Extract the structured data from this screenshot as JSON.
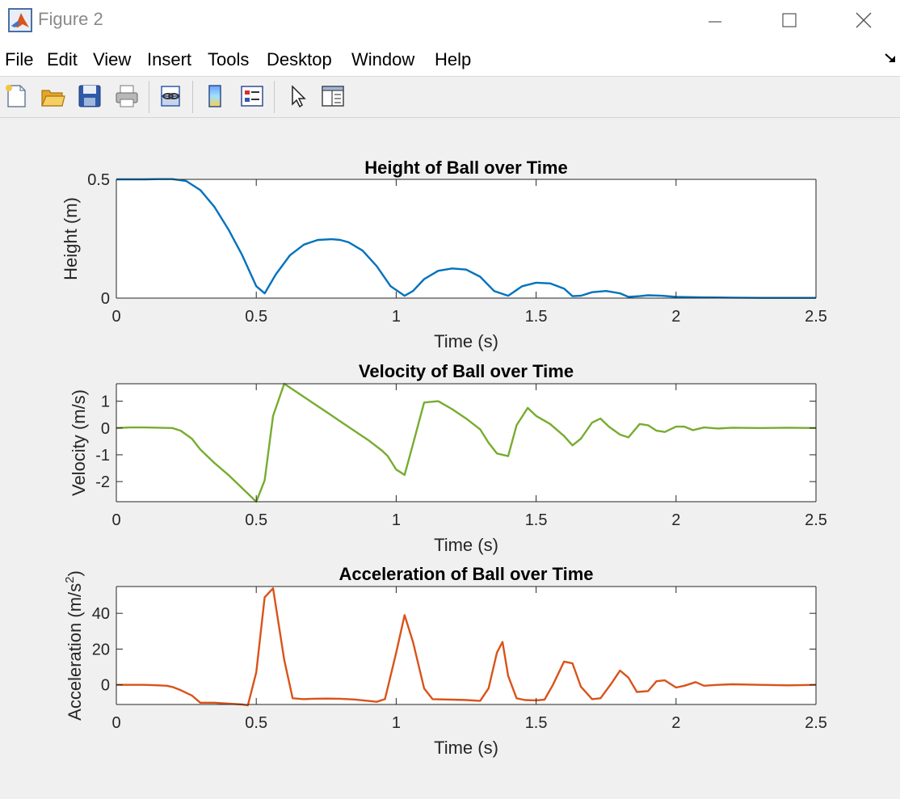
{
  "window": {
    "title": "Figure 2",
    "icon": "matlab-logo-icon"
  },
  "menu": [
    "File",
    "Edit",
    "View",
    "Insert",
    "Tools",
    "Desktop",
    "Window",
    "Help"
  ],
  "toolbar": [
    "new-figure-icon",
    "open-file-icon",
    "save-icon",
    "print-icon",
    "link-icon",
    "colorbar-icon",
    "legend-icon",
    "pointer-icon",
    "property-editor-icon"
  ],
  "chart_data": [
    {
      "type": "line",
      "title": "Height of Ball over Time",
      "xlabel": "Time (s)",
      "ylabel": "Height (m)",
      "xlim": [
        0,
        2.5
      ],
      "ylim": [
        0,
        0.5
      ],
      "xticks": [
        "0",
        "0.5",
        "1",
        "1.5",
        "2",
        "2.5"
      ],
      "yticks": [
        "0",
        "0.5"
      ],
      "ytick_values": [
        0,
        0.5
      ],
      "color": "#0072bd",
      "x": [
        0,
        0.05,
        0.1,
        0.15,
        0.2,
        0.25,
        0.3,
        0.35,
        0.4,
        0.45,
        0.5,
        0.53,
        0.57,
        0.62,
        0.67,
        0.72,
        0.77,
        0.8,
        0.83,
        0.88,
        0.93,
        0.98,
        1.03,
        1.06,
        1.1,
        1.15,
        1.2,
        1.25,
        1.3,
        1.35,
        1.4,
        1.45,
        1.5,
        1.55,
        1.6,
        1.63,
        1.66,
        1.7,
        1.75,
        1.8,
        1.83,
        1.87,
        1.9,
        1.95,
        2.0,
        2.05,
        2.1,
        2.2,
        2.3,
        2.4,
        2.5
      ],
      "y": [
        0.5,
        0.5,
        0.5,
        0.501,
        0.501,
        0.493,
        0.455,
        0.385,
        0.29,
        0.18,
        0.05,
        0.02,
        0.1,
        0.18,
        0.225,
        0.245,
        0.248,
        0.245,
        0.235,
        0.2,
        0.135,
        0.05,
        0.01,
        0.03,
        0.08,
        0.115,
        0.125,
        0.12,
        0.09,
        0.03,
        0.01,
        0.05,
        0.065,
        0.062,
        0.04,
        0.008,
        0.01,
        0.025,
        0.03,
        0.02,
        0.005,
        0.008,
        0.012,
        0.01,
        0.005,
        0.004,
        0.003,
        0.002,
        0.001,
        0.001,
        0.001
      ]
    },
    {
      "type": "line",
      "title": "Velocity of Ball over Time",
      "xlabel": "Time (s)",
      "ylabel": "Velocity (m/s)",
      "xlim": [
        0,
        2.5
      ],
      "ylim": [
        -2.75,
        1.65
      ],
      "xticks": [
        "0",
        "0.5",
        "1",
        "1.5",
        "2",
        "2.5"
      ],
      "yticks": [
        "-2",
        "-1",
        "0",
        "1"
      ],
      "ytick_values": [
        -2,
        -1,
        0,
        1
      ],
      "color": "#77ac30",
      "x": [
        0,
        0.05,
        0.1,
        0.15,
        0.2,
        0.23,
        0.27,
        0.3,
        0.35,
        0.4,
        0.45,
        0.5,
        0.53,
        0.56,
        0.6,
        0.65,
        0.7,
        0.75,
        0.8,
        0.85,
        0.9,
        0.95,
        0.97,
        1.0,
        1.03,
        1.06,
        1.1,
        1.15,
        1.2,
        1.25,
        1.3,
        1.33,
        1.36,
        1.4,
        1.43,
        1.47,
        1.5,
        1.55,
        1.6,
        1.63,
        1.66,
        1.7,
        1.73,
        1.76,
        1.8,
        1.83,
        1.87,
        1.9,
        1.93,
        1.96,
        2.0,
        2.03,
        2.06,
        2.1,
        2.15,
        2.2,
        2.3,
        2.4,
        2.5
      ],
      "y": [
        0,
        0.02,
        0.02,
        0.01,
        0,
        -0.1,
        -0.4,
        -0.8,
        -1.3,
        -1.75,
        -2.25,
        -2.75,
        -1.95,
        0.45,
        1.65,
        1.3,
        0.95,
        0.6,
        0.25,
        -0.1,
        -0.45,
        -0.85,
        -1.05,
        -1.55,
        -1.75,
        -0.6,
        0.95,
        1.0,
        0.7,
        0.35,
        -0.05,
        -0.55,
        -0.95,
        -1.05,
        0.1,
        0.75,
        0.45,
        0.15,
        -0.3,
        -0.65,
        -0.4,
        0.2,
        0.35,
        0.05,
        -0.25,
        -0.35,
        0.15,
        0.1,
        -0.1,
        -0.15,
        0.05,
        0.05,
        -0.08,
        0.02,
        -0.02,
        0.01,
        0,
        0.01,
        0
      ]
    },
    {
      "type": "line",
      "title": "Acceleration of Ball over Time",
      "xlabel": "Time (s)",
      "ylabel": "Acceleration (m/s",
      "ylabel_sup": "2",
      "ylabel_end": ")",
      "xlim": [
        0,
        2.5
      ],
      "ylim": [
        -11,
        55
      ],
      "xticks": [
        "0",
        "0.5",
        "1",
        "1.5",
        "2",
        "2.5"
      ],
      "yticks": [
        "0",
        "20",
        "40"
      ],
      "ytick_values": [
        0,
        20,
        40
      ],
      "color": "#d95319",
      "x": [
        0,
        0.05,
        0.1,
        0.15,
        0.18,
        0.2,
        0.23,
        0.27,
        0.3,
        0.35,
        0.4,
        0.45,
        0.47,
        0.5,
        0.53,
        0.56,
        0.6,
        0.63,
        0.67,
        0.7,
        0.75,
        0.8,
        0.85,
        0.9,
        0.93,
        0.96,
        1.0,
        1.03,
        1.06,
        1.1,
        1.13,
        1.2,
        1.25,
        1.3,
        1.33,
        1.36,
        1.38,
        1.4,
        1.43,
        1.46,
        1.5,
        1.53,
        1.56,
        1.6,
        1.63,
        1.66,
        1.7,
        1.73,
        1.77,
        1.8,
        1.83,
        1.86,
        1.9,
        1.93,
        1.96,
        2.0,
        2.03,
        2.07,
        2.1,
        2.15,
        2.2,
        2.3,
        2.4,
        2.5
      ],
      "y": [
        0,
        0,
        0,
        -0.3,
        -0.5,
        -1.2,
        -3,
        -6,
        -10,
        -10,
        -10.5,
        -11,
        -11.5,
        7,
        49,
        54,
        14,
        -7.5,
        -8,
        -7.8,
        -7.7,
        -7.8,
        -8.2,
        -9,
        -9.5,
        -8,
        18,
        39,
        24,
        -2,
        -8,
        -8.3,
        -8.5,
        -9,
        -2,
        18,
        24,
        5,
        -7.5,
        -8.5,
        -8.7,
        -8.3,
        0,
        13,
        12,
        -1,
        -8,
        -7.5,
        1,
        8,
        4,
        -4,
        -3.5,
        2,
        2.5,
        -1.5,
        -0.5,
        1.5,
        -0.5,
        0,
        0.3,
        0,
        -0.3,
        0
      ]
    }
  ]
}
